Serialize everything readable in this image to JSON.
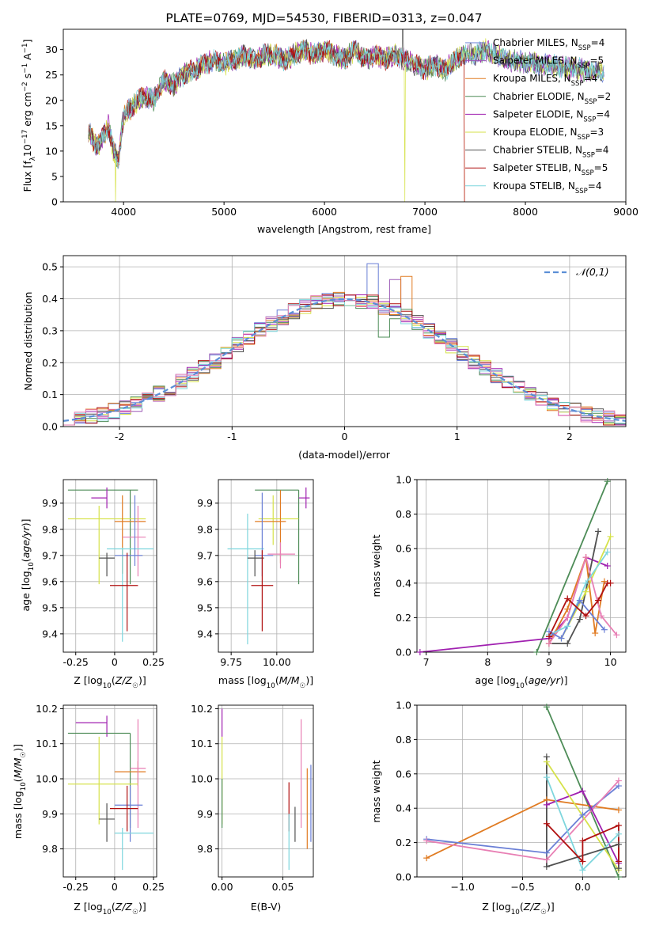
{
  "colors": {
    "chabrier_miles": "#6a7fd6",
    "salpeter_miles": "#9b59b6",
    "kroupa_miles": "#e07b22",
    "chabrier_elodie": "#4d8c57",
    "salpeter_elodie": "#a020b0",
    "kroupa_elodie": "#d6e24a",
    "chabrier_stelib": "#505050",
    "salpeter_stelib": "#b01010",
    "kroupa_stelib": "#7ed6dd",
    "extra_pink": "#e87fb4",
    "gauss": "#5b8fd6"
  },
  "chart_data": [
    {
      "type": "line",
      "title": "PLATE=0769, MJD=54530, FIBERID=0313, z=0.047",
      "xlabel": "wavelength [Angstrom, rest frame]",
      "ylabel": "Flux [f_λ10^-17 erg cm^-2 s^-1 A^-1]",
      "xlim": [
        3400,
        9000
      ],
      "ylim": [
        0,
        34
      ],
      "xticks": [
        4000,
        5000,
        6000,
        7000,
        8000,
        9000
      ],
      "yticks": [
        0,
        5,
        10,
        15,
        20,
        25,
        30
      ],
      "legend_position": "top-right",
      "spectrum_knots": {
        "x": [
          3650,
          3700,
          3750,
          3800,
          3850,
          3900,
          3950,
          4000,
          4100,
          4200,
          4300,
          4400,
          4500,
          4600,
          4700,
          4800,
          4900,
          5000,
          5100,
          5200,
          5300,
          5400,
          5500,
          5600,
          5700,
          5800,
          5900,
          6000,
          6100,
          6200,
          6300,
          6400,
          6500,
          6600,
          6700,
          6800,
          6900,
          7000,
          7100,
          7200,
          7300,
          7400,
          7500,
          7600,
          7700,
          7800,
          8000,
          8200,
          8400,
          8600,
          8780
        ],
        "y": [
          14,
          12,
          11,
          13,
          15,
          10,
          8,
          17,
          19,
          21,
          20,
          24,
          23,
          25,
          26,
          27,
          28,
          27,
          28,
          29,
          28,
          29,
          29,
          28,
          29,
          30,
          29,
          30,
          29,
          28,
          30,
          28,
          29,
          28,
          29,
          28,
          27,
          26,
          27,
          26,
          28,
          29,
          29,
          30,
          29,
          28,
          27.5,
          27,
          26.5,
          26,
          25.5
        ]
      },
      "series": [
        {
          "name": "Chabrier MILES, N_SSP=4",
          "color_key": "chabrier_miles"
        },
        {
          "name": "Salpeter MILES, N_SSP=5",
          "color_key": "salpeter_miles"
        },
        {
          "name": "Kroupa MILES, N_SSP=4",
          "color_key": "kroupa_miles"
        },
        {
          "name": "Chabrier ELODIE, N_SSP=2",
          "color_key": "chabrier_elodie"
        },
        {
          "name": "Salpeter ELODIE, N_SSP=4",
          "color_key": "salpeter_elodie"
        },
        {
          "name": "Kroupa ELODIE, N_SSP=3",
          "color_key": "kroupa_elodie"
        },
        {
          "name": "Chabrier STELIB, N_SSP=4",
          "color_key": "chabrier_stelib"
        },
        {
          "name": "Salpeter STELIB, N_SSP=5",
          "color_key": "salpeter_stelib"
        },
        {
          "name": "Kroupa STELIB, N_SSP=4",
          "color_key": "kroupa_stelib"
        }
      ]
    },
    {
      "type": "histogram",
      "xlabel": "(data-model)/error",
      "ylabel": "Normed distribution",
      "xlim": [
        -2.5,
        2.5
      ],
      "ylim": [
        0,
        0.535
      ],
      "xticks": [
        -2,
        -1,
        0,
        1,
        2
      ],
      "yticks": [
        0.0,
        0.1,
        0.2,
        0.3,
        0.4,
        0.5
      ],
      "bin_width": 0.1,
      "legend": "𝒩(0,1)",
      "legend_position": "top-right",
      "spikes": [
        {
          "x": 0.2,
          "y": 0.51
        },
        {
          "x": 0.4,
          "y": 0.46
        },
        {
          "x": 0.5,
          "y": 0.47
        },
        {
          "x": 0.3,
          "y": 0.28
        }
      ]
    },
    {
      "type": "errorbar",
      "xlabel": "Z [log10(Z/Z☉)]",
      "ylabel": "age  [log10(age/yr)]",
      "xlim": [
        -0.33,
        0.27
      ],
      "ylim": [
        9.33,
        9.99
      ],
      "xticks": [
        -0.25,
        0.0,
        0.25
      ],
      "yticks": [
        9.4,
        9.5,
        9.6,
        9.7,
        9.8,
        9.9
      ],
      "points": [
        {
          "c": "chabrier_elodie",
          "x": 0.1,
          "xl": -0.3,
          "xh": 0.15,
          "y": 9.95,
          "yl": 9.59,
          "yh": 9.95
        },
        {
          "c": "salpeter_elodie",
          "x": -0.05,
          "xl": -0.15,
          "xh": -0.05,
          "y": 9.92,
          "yl": 9.88,
          "yh": 9.96
        },
        {
          "c": "kroupa_elodie",
          "x": -0.1,
          "xl": -0.3,
          "xh": 0.2,
          "y": 9.84,
          "yl": 9.59,
          "yh": 9.89
        },
        {
          "c": "kroupa_miles",
          "x": 0.05,
          "xl": 0.0,
          "xh": 0.2,
          "y": 9.83,
          "yl": 9.63,
          "yh": 9.93
        },
        {
          "c": "extra_pink",
          "x": 0.15,
          "xl": 0.05,
          "xh": 0.2,
          "y": 9.77,
          "yl": 9.62,
          "yh": 9.89
        },
        {
          "c": "kroupa_stelib",
          "x": 0.05,
          "xl": -0.05,
          "xh": 0.25,
          "y": 9.725,
          "yl": 9.37,
          "yh": 9.73
        },
        {
          "c": "chabrier_miles",
          "x": 0.13,
          "xl": 0.0,
          "xh": 0.18,
          "y": 9.7,
          "yl": 9.66,
          "yh": 9.93
        },
        {
          "c": "chabrier_stelib",
          "x": -0.05,
          "xl": -0.1,
          "xh": 0.0,
          "y": 9.69,
          "yl": 9.62,
          "yh": 9.71
        },
        {
          "c": "salpeter_stelib",
          "x": 0.08,
          "xl": -0.03,
          "xh": 0.15,
          "y": 9.585,
          "yl": 9.41,
          "yh": 9.71
        }
      ]
    },
    {
      "type": "errorbar",
      "xlabel": "mass [log10(M/M☉)]",
      "ylabel": "",
      "xlim": [
        9.68,
        10.2
      ],
      "ylim": [
        9.33,
        9.99
      ],
      "xticks": [
        9.75,
        10.0
      ],
      "xticklabels": [
        "9.75",
        "10.00"
      ],
      "yticks": [
        9.4,
        9.5,
        9.6,
        9.7,
        9.8,
        9.9
      ],
      "points": [
        {
          "c": "chabrier_elodie",
          "x": 10.12,
          "xl": 9.88,
          "xh": 10.12,
          "y": 9.95,
          "yl": 9.59,
          "yh": 9.95
        },
        {
          "c": "salpeter_elodie",
          "x": 10.16,
          "xl": 10.12,
          "xh": 10.18,
          "y": 9.92,
          "yl": 9.88,
          "yh": 9.96
        },
        {
          "c": "kroupa_elodie",
          "x": 9.98,
          "xl": 9.9,
          "xh": 10.12,
          "y": 9.84,
          "yl": 9.74,
          "yh": 9.93
        },
        {
          "c": "kroupa_miles",
          "x": 10.02,
          "xl": 9.88,
          "xh": 10.05,
          "y": 9.83,
          "yl": 9.67,
          "yh": 9.95
        },
        {
          "c": "kroupa_stelib",
          "x": 9.84,
          "xl": 9.73,
          "xh": 9.93,
          "y": 9.725,
          "yl": 9.36,
          "yh": 9.86
        },
        {
          "c": "extra_pink",
          "x": 10.02,
          "xl": 9.95,
          "xh": 10.1,
          "y": 9.705,
          "yl": 9.65,
          "yh": 9.75
        },
        {
          "c": "chabrier_miles",
          "x": 9.92,
          "xl": 9.88,
          "xh": 9.98,
          "y": 9.7,
          "yl": 9.62,
          "yh": 9.94
        },
        {
          "c": "chabrier_stelib",
          "x": 9.88,
          "xl": 9.84,
          "xh": 9.93,
          "y": 9.69,
          "yl": 9.62,
          "yh": 9.72
        },
        {
          "c": "salpeter_stelib",
          "x": 9.92,
          "xl": 9.86,
          "xh": 9.98,
          "y": 9.585,
          "yl": 9.41,
          "yh": 9.72
        }
      ]
    },
    {
      "type": "line",
      "xlabel": "age  [log10(age/yr)]",
      "ylabel": "mass weight",
      "xlim": [
        6.85,
        10.25
      ],
      "ylim": [
        0,
        1
      ],
      "xticks": [
        7,
        8,
        9,
        10
      ],
      "yticks": [
        0.0,
        0.2,
        0.4,
        0.6,
        0.8,
        1.0
      ],
      "series": [
        {
          "c": "chabrier_elodie",
          "x": [
            8.8,
            9.95
          ],
          "y": [
            0.0,
            0.99
          ]
        },
        {
          "c": "salpeter_elodie",
          "x": [
            6.9,
            9.0,
            9.3,
            9.6,
            9.95
          ],
          "y": [
            0.0,
            0.08,
            0.2,
            0.55,
            0.5
          ]
        },
        {
          "c": "chabrier_stelib",
          "x": [
            9.0,
            9.3,
            9.5,
            9.8
          ],
          "y": [
            0.05,
            0.05,
            0.19,
            0.7
          ]
        },
        {
          "c": "kroupa_elodie",
          "x": [
            9.2,
            9.6,
            10.0
          ],
          "y": [
            0.08,
            0.35,
            0.67
          ]
        },
        {
          "c": "kroupa_miles",
          "x": [
            9.0,
            9.3,
            9.6,
            9.75,
            9.9
          ],
          "y": [
            0.05,
            0.25,
            0.55,
            0.11,
            0.41
          ]
        },
        {
          "c": "extra_pink",
          "x": [
            9.0,
            9.3,
            9.6,
            9.85,
            10.1
          ],
          "y": [
            0.05,
            0.2,
            0.55,
            0.21,
            0.1
          ]
        },
        {
          "c": "kroupa_stelib",
          "x": [
            9.0,
            9.3,
            9.6,
            9.95
          ],
          "y": [
            0.1,
            0.15,
            0.4,
            0.58
          ]
        },
        {
          "c": "chabrier_miles",
          "x": [
            9.0,
            9.2,
            9.5,
            9.9
          ],
          "y": [
            0.12,
            0.08,
            0.3,
            0.13
          ]
        },
        {
          "c": "salpeter_stelib",
          "x": [
            9.0,
            9.3,
            9.6,
            9.8,
            9.95,
            10.0
          ],
          "y": [
            0.09,
            0.31,
            0.21,
            0.3,
            0.4,
            0.4
          ]
        }
      ]
    },
    {
      "type": "errorbar",
      "xlabel": "Z [log10(Z/Z☉)]",
      "ylabel": "mass [log10(M/M☉)]",
      "xlim": [
        -0.33,
        0.27
      ],
      "ylim": [
        9.72,
        10.21
      ],
      "xticks": [
        -0.25,
        0.0,
        0.25
      ],
      "yticks": [
        9.8,
        9.9,
        10.0,
        10.1,
        10.2
      ],
      "points": [
        {
          "c": "salpeter_elodie",
          "x": -0.05,
          "xl": -0.25,
          "xh": -0.05,
          "y": 10.16,
          "yl": 10.12,
          "yh": 10.18
        },
        {
          "c": "chabrier_elodie",
          "x": 0.1,
          "xl": -0.3,
          "xh": 0.1,
          "y": 10.13,
          "yl": 9.86,
          "yh": 10.13
        },
        {
          "c": "kroupa_miles",
          "x": 0.15,
          "xl": 0.0,
          "xh": 0.2,
          "y": 10.02,
          "yl": 9.98,
          "yh": 10.05
        },
        {
          "c": "extra_pink",
          "x": 0.15,
          "xl": 0.1,
          "xh": 0.2,
          "y": 10.03,
          "yl": 9.86,
          "yh": 10.17
        },
        {
          "c": "kroupa_elodie",
          "x": -0.1,
          "xl": -0.3,
          "xh": 0.15,
          "y": 9.985,
          "yl": 9.87,
          "yh": 10.12
        },
        {
          "c": "chabrier_miles",
          "x": 0.1,
          "xl": 0.0,
          "xh": 0.18,
          "y": 9.925,
          "yl": 9.82,
          "yh": 9.98
        },
        {
          "c": "salpeter_stelib",
          "x": 0.08,
          "xl": -0.03,
          "xh": 0.15,
          "y": 9.915,
          "yl": 9.85,
          "yh": 9.98
        },
        {
          "c": "chabrier_stelib",
          "x": -0.05,
          "xl": -0.1,
          "xh": 0.0,
          "y": 9.885,
          "yl": 9.82,
          "yh": 9.93
        },
        {
          "c": "kroupa_stelib",
          "x": 0.05,
          "xl": 0.0,
          "xh": 0.25,
          "y": 9.845,
          "yl": 9.74,
          "yh": 9.86
        }
      ]
    },
    {
      "type": "errorbar",
      "xlabel": "E(B-V)",
      "ylabel": "",
      "xlim": [
        -0.003,
        0.075
      ],
      "ylim": [
        9.72,
        10.21
      ],
      "xticks": [
        0.0,
        0.05
      ],
      "xticklabels": [
        "0.00",
        "0.05"
      ],
      "yticks": [
        9.8,
        9.9,
        10.0,
        10.1,
        10.2
      ],
      "points": [
        {
          "c": "salpeter_elodie",
          "x": 0.0,
          "y": 10.16,
          "yl": 10.12,
          "yh": 10.2
        },
        {
          "c": "kroupa_elodie",
          "x": 0.0,
          "y": 9.985,
          "yl": 9.87,
          "yh": 10.12
        },
        {
          "c": "chabrier_elodie",
          "x": 0.0,
          "y": 9.93,
          "yl": 9.86,
          "yh": 10.0
        },
        {
          "c": "salpeter_stelib",
          "x": 0.055,
          "y": 9.915,
          "yl": 9.85,
          "yh": 9.99
        },
        {
          "c": "kroupa_stelib",
          "x": 0.055,
          "y": 9.845,
          "yl": 9.74,
          "yh": 9.9
        },
        {
          "c": "chabrier_stelib",
          "x": 0.06,
          "y": 9.885,
          "yl": 9.82,
          "yh": 9.92
        },
        {
          "c": "extra_pink",
          "x": 0.065,
          "y": 10.03,
          "yl": 9.86,
          "yh": 10.17
        },
        {
          "c": "kroupa_miles",
          "x": 0.07,
          "y": 10.02,
          "yl": 9.8,
          "yh": 10.03
        },
        {
          "c": "chabrier_miles",
          "x": 0.073,
          "y": 9.925,
          "yl": 9.82,
          "yh": 10.04
        }
      ]
    },
    {
      "type": "line",
      "xlabel": "Z [log10(Z/Z☉)]",
      "ylabel": "mass weight",
      "xlim": [
        -1.38,
        0.36
      ],
      "ylim": [
        0,
        1
      ],
      "xticks": [
        -1.0,
        -0.5,
        0.0
      ],
      "yticks": [
        0.0,
        0.2,
        0.4,
        0.6,
        0.8,
        1.0
      ],
      "series": [
        {
          "c": "chabrier_elodie",
          "x": [
            -0.3,
            0.3
          ],
          "y": [
            0.99,
            0.0
          ]
        },
        {
          "c": "kroupa_miles",
          "x": [
            -1.3,
            -0.3,
            0.3
          ],
          "y": [
            0.11,
            0.45,
            0.39
          ]
        },
        {
          "c": "chabrier_miles",
          "x": [
            -1.3,
            -0.3,
            0.0,
            0.3
          ],
          "y": [
            0.22,
            0.14,
            0.36,
            0.53
          ]
        },
        {
          "c": "extra_pink",
          "x": [
            -1.3,
            -0.3,
            0.3
          ],
          "y": [
            0.21,
            0.1,
            0.56
          ]
        },
        {
          "c": "salpeter_elodie",
          "x": [
            -0.3,
            0.0,
            0.3
          ],
          "y": [
            0.42,
            0.5,
            0.08
          ]
        },
        {
          "c": "kroupa_elodie",
          "x": [
            -0.3,
            0.3
          ],
          "y": [
            0.67,
            0.04
          ]
        },
        {
          "c": "kroupa_stelib",
          "x": [
            -0.3,
            0.0,
            0.3
          ],
          "y": [
            0.58,
            0.04,
            0.25
          ]
        },
        {
          "c": "chabrier_stelib",
          "x": [
            -0.3,
            -0.3,
            0.3,
            0.3
          ],
          "y": [
            0.7,
            0.06,
            0.19,
            0.05
          ]
        },
        {
          "c": "salpeter_stelib",
          "x": [
            -0.3,
            0.0,
            0.0,
            0.3,
            0.3
          ],
          "y": [
            0.31,
            0.09,
            0.21,
            0.3,
            0.09
          ]
        }
      ]
    }
  ]
}
